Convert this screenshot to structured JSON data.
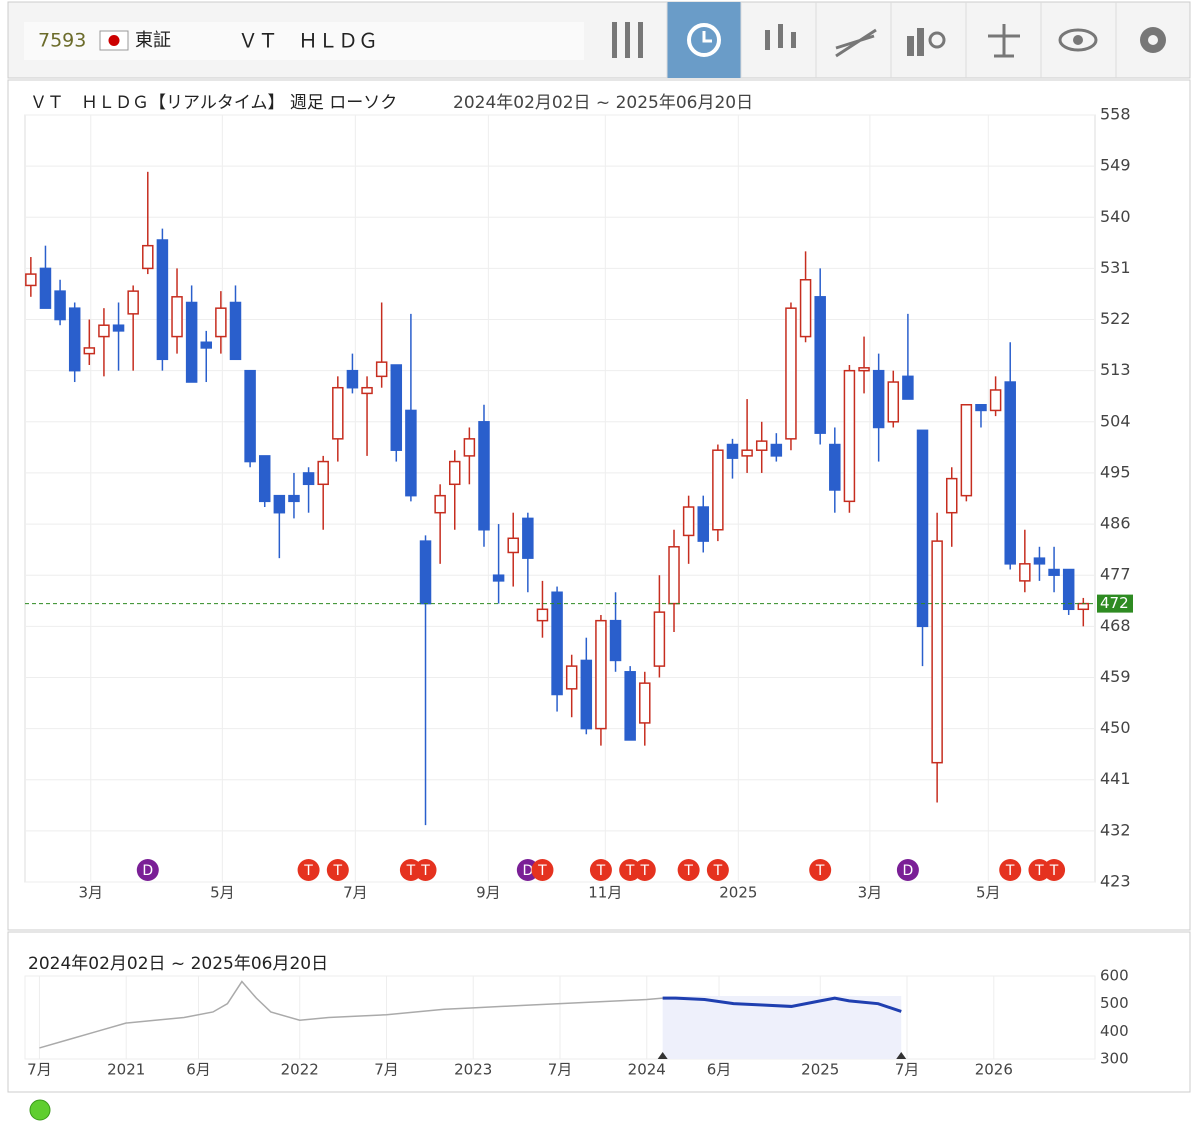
{
  "header": {
    "code": "7593",
    "market": "東証",
    "name": "ＶＴ　ＨＬＤＧ"
  },
  "chart_data": [
    {
      "type": "candlestick",
      "title": "ＶＴ　ＨＬＤＧ【リアルタイム】 週足 ローソク",
      "subtitle": "2024年02月02日 ~ 2025年06月20日",
      "up_color": "#c62d1f",
      "down_color": "#2a5fcc",
      "ohlc": [
        [
          528,
          533,
          526,
          530
        ],
        [
          531,
          535,
          524,
          524
        ],
        [
          527,
          529,
          521,
          522
        ],
        [
          524,
          525,
          511,
          513
        ],
        [
          516,
          522,
          514,
          517
        ],
        [
          519,
          524,
          512,
          521
        ],
        [
          521,
          525,
          513,
          520
        ],
        [
          523,
          528,
          513,
          527
        ],
        [
          531,
          548,
          530,
          535
        ],
        [
          536,
          538,
          513,
          515
        ],
        [
          519,
          531,
          516,
          526
        ],
        [
          525,
          528,
          511,
          511
        ],
        [
          518,
          520,
          511,
          517
        ],
        [
          519,
          527,
          516,
          524
        ],
        [
          525,
          528,
          515,
          515
        ],
        [
          513,
          513,
          496,
          497
        ],
        [
          498,
          498,
          489,
          490
        ],
        [
          491,
          491,
          480,
          488
        ],
        [
          491,
          495,
          487,
          490
        ],
        [
          495,
          496,
          488,
          493
        ],
        [
          493,
          498,
          485,
          497
        ],
        [
          501,
          512,
          497,
          510
        ],
        [
          513,
          516,
          509,
          510
        ],
        [
          509,
          512,
          498,
          510
        ],
        [
          512,
          525,
          510,
          514.5
        ],
        [
          514,
          514,
          497,
          499
        ],
        [
          506,
          523,
          490,
          491
        ],
        [
          483,
          484,
          433,
          472
        ],
        [
          488,
          493,
          479,
          491
        ],
        [
          493,
          499,
          485,
          497
        ],
        [
          498,
          503,
          493,
          501
        ],
        [
          504,
          507,
          482,
          485
        ],
        [
          477,
          486,
          472,
          476
        ],
        [
          481,
          488,
          475,
          483.5
        ],
        [
          487,
          488,
          474,
          480
        ],
        [
          469,
          476,
          466,
          471
        ],
        [
          474,
          475,
          453,
          456
        ],
        [
          457,
          463,
          452,
          461
        ],
        [
          462,
          466,
          449,
          450
        ],
        [
          450,
          470,
          447,
          469
        ],
        [
          469,
          474,
          460,
          462
        ],
        [
          460,
          461,
          448,
          448
        ],
        [
          451,
          460,
          447,
          458
        ],
        [
          461,
          477,
          459,
          470.5
        ],
        [
          472,
          485,
          467,
          482
        ],
        [
          484,
          491,
          479,
          489
        ],
        [
          489,
          491,
          481,
          483
        ],
        [
          485,
          500,
          483,
          499
        ],
        [
          500,
          501,
          494,
          497.6
        ],
        [
          498,
          508,
          495,
          499
        ],
        [
          499,
          504,
          495,
          500.6
        ],
        [
          500,
          502,
          497,
          498
        ],
        [
          501,
          525,
          499,
          524
        ],
        [
          519,
          534,
          518,
          529
        ],
        [
          526,
          531,
          500,
          502
        ],
        [
          500,
          503,
          488,
          492
        ],
        [
          490,
          514,
          488,
          513
        ],
        [
          513,
          519,
          509,
          513.5
        ],
        [
          513,
          516,
          497,
          503
        ],
        [
          504,
          513,
          503,
          511
        ],
        [
          512,
          523,
          508,
          508
        ],
        [
          502.5,
          502.5,
          461,
          468
        ],
        [
          444,
          488,
          437,
          483
        ],
        [
          488,
          496,
          482,
          494
        ],
        [
          491,
          507,
          490,
          507
        ],
        [
          507,
          506.5,
          503,
          506
        ],
        [
          506,
          512,
          505,
          509.6
        ],
        [
          511,
          518,
          478,
          479
        ],
        [
          476,
          485,
          474,
          479
        ],
        [
          480,
          482,
          476,
          479
        ],
        [
          478,
          482,
          474,
          477
        ],
        [
          478,
          478,
          470,
          471
        ],
        [
          471,
          473,
          468,
          472
        ]
      ],
      "current": 472,
      "current_color": "#2e8b22",
      "ylim": [
        423,
        558
      ],
      "yticks": [
        423,
        432,
        441,
        450,
        459,
        468,
        477,
        486,
        495,
        504,
        513,
        522,
        531,
        540,
        549,
        558
      ],
      "xlim": [
        -0.4,
        72.8
      ],
      "xticks": [
        {
          "value": 4.1,
          "label": "3月"
        },
        {
          "value": 13.1,
          "label": "5月"
        },
        {
          "value": 22.2,
          "label": "7月"
        },
        {
          "value": 31.3,
          "label": "9月"
        },
        {
          "value": 39.3,
          "label": "11月"
        },
        {
          "value": 48.4,
          "label": "2025"
        },
        {
          "value": 57.4,
          "label": "3月"
        },
        {
          "value": 65.5,
          "label": "5月"
        }
      ],
      "events": [
        {
          "index": 8,
          "label": "D"
        },
        {
          "index": 19,
          "label": "T"
        },
        {
          "index": 21,
          "label": "T"
        },
        {
          "index": 26,
          "label": "T"
        },
        {
          "index": 27,
          "label": "T"
        },
        {
          "index": 34,
          "label": "D"
        },
        {
          "index": 35,
          "label": "T"
        },
        {
          "index": 39,
          "label": "T"
        },
        {
          "index": 41,
          "label": "T"
        },
        {
          "index": 42,
          "label": "T"
        },
        {
          "index": 45,
          "label": "T"
        },
        {
          "index": 47,
          "label": "T"
        },
        {
          "index": 54,
          "label": "T"
        },
        {
          "index": 60,
          "label": "D"
        },
        {
          "index": 67,
          "label": "T"
        },
        {
          "index": 69,
          "label": "T"
        },
        {
          "index": 70,
          "label": "T"
        }
      ],
      "grid": true
    },
    {
      "type": "line",
      "title": "2024年02月02日 ~ 2025年06月20日",
      "color": "#aaaaaa",
      "highlight_color": "#1f3fb0",
      "x": [
        0,
        2,
        4,
        6,
        8,
        10,
        12,
        13,
        14,
        15,
        16,
        18,
        20,
        22,
        24,
        26,
        28,
        30,
        32,
        34,
        36,
        38,
        40,
        42,
        43.1,
        44,
        46,
        48,
        50,
        52,
        54,
        55,
        56,
        58,
        59.6
      ],
      "values": [
        340,
        370,
        400,
        430,
        440,
        450,
        470,
        500,
        580,
        520,
        470,
        440,
        450,
        455,
        460,
        470,
        480,
        485,
        490,
        495,
        500,
        505,
        510,
        515,
        520,
        520,
        515,
        500,
        495,
        490,
        510,
        520,
        510,
        500,
        472
      ],
      "highlight": [
        43.1,
        59.6
      ],
      "xlim": [
        -1,
        73
      ],
      "ylim": [
        300,
        600
      ],
      "yticks": [
        300,
        400,
        500,
        600
      ],
      "xticks": [
        {
          "value": 0,
          "label": "7月"
        },
        {
          "value": 6,
          "label": "2021"
        },
        {
          "value": 11,
          "label": "6月"
        },
        {
          "value": 18,
          "label": "2022"
        },
        {
          "value": 24,
          "label": "7月"
        },
        {
          "value": 30,
          "label": "2023"
        },
        {
          "value": 36,
          "label": "7月"
        },
        {
          "value": 42,
          "label": "2024"
        },
        {
          "value": 47,
          "label": "6月"
        },
        {
          "value": 54,
          "label": "2025"
        },
        {
          "value": 60,
          "label": "7月"
        },
        {
          "value": 66,
          "label": "2026"
        }
      ]
    }
  ]
}
